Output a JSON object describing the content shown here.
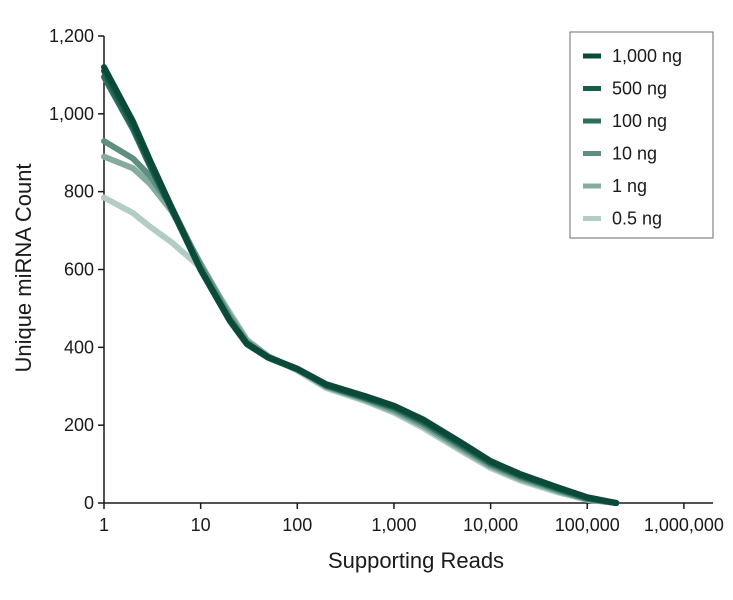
{
  "chart_data": {
    "type": "line",
    "xlabel": "Supporting Reads",
    "ylabel": "Unique miRNA Count",
    "x_scale": "log",
    "xlim": [
      1,
      2000000
    ],
    "ylim": [
      0,
      1200
    ],
    "x_ticks": [
      1,
      10,
      100,
      1000,
      10000,
      100000,
      1000000
    ],
    "x_tick_labels": [
      "1",
      "10",
      "100",
      "1,000",
      "10,000",
      "100,000",
      "1,000,000"
    ],
    "y_ticks": [
      0,
      200,
      400,
      600,
      800,
      1000,
      1200
    ],
    "y_tick_labels": [
      "0",
      "200",
      "400",
      "600",
      "800",
      "1,000",
      "1,200"
    ],
    "grid": false,
    "legend_position": "top-right",
    "series": [
      {
        "name": "1,000 ng",
        "color": "#0b4a3a",
        "x": [
          1,
          2,
          3,
          5,
          10,
          20,
          30,
          50,
          100,
          200,
          500,
          1000,
          2000,
          5000,
          10000,
          20000,
          50000,
          100000,
          200000
        ],
        "y": [
          1120,
          980,
          880,
          760,
          600,
          470,
          410,
          375,
          345,
          305,
          275,
          250,
          215,
          155,
          108,
          75,
          40,
          15,
          0
        ]
      },
      {
        "name": "500 ng",
        "color": "#155e4a",
        "x": [
          1,
          2,
          3,
          5,
          10,
          20,
          30,
          50,
          100,
          200,
          500,
          1000,
          2000,
          5000,
          10000,
          20000,
          50000,
          100000,
          200000
        ],
        "y": [
          1110,
          970,
          870,
          755,
          598,
          468,
          408,
          373,
          343,
          303,
          272,
          248,
          212,
          152,
          105,
          72,
          38,
          13,
          0
        ]
      },
      {
        "name": "100 ng",
        "color": "#2f6e5c",
        "x": [
          1,
          2,
          3,
          5,
          10,
          20,
          30,
          50,
          100,
          200,
          500,
          1000,
          2000,
          5000,
          10000,
          20000,
          50000,
          100000,
          200000
        ],
        "y": [
          1095,
          960,
          865,
          755,
          600,
          470,
          410,
          374,
          344,
          302,
          270,
          245,
          208,
          148,
          102,
          70,
          36,
          12,
          0
        ]
      },
      {
        "name": "10 ng",
        "color": "#5e8f80",
        "x": [
          1,
          2,
          3,
          5,
          10,
          20,
          30,
          50,
          100,
          200,
          500,
          1000,
          2000,
          5000,
          10000,
          20000,
          50000,
          100000,
          200000
        ],
        "y": [
          930,
          885,
          840,
          760,
          610,
          478,
          413,
          375,
          345,
          300,
          268,
          240,
          203,
          143,
          98,
          66,
          33,
          10,
          0
        ]
      },
      {
        "name": "1 ng",
        "color": "#86aca0",
        "x": [
          1,
          2,
          3,
          5,
          10,
          20,
          30,
          50,
          100,
          200,
          500,
          1000,
          2000,
          5000,
          10000,
          20000,
          50000,
          100000,
          200000
        ],
        "y": [
          890,
          860,
          820,
          750,
          615,
          485,
          418,
          377,
          343,
          298,
          265,
          236,
          198,
          138,
          94,
          62,
          30,
          9,
          0
        ]
      },
      {
        "name": "0.5 ng",
        "color": "#b4cdc4",
        "x": [
          1,
          2,
          3,
          5,
          10,
          20,
          30,
          50,
          100,
          200,
          500,
          1000,
          2000,
          5000,
          10000,
          20000,
          50000,
          100000,
          200000
        ],
        "y": [
          785,
          745,
          710,
          670,
          605,
          490,
          420,
          378,
          340,
          295,
          262,
          232,
          193,
          133,
          90,
          58,
          27,
          8,
          0
        ]
      }
    ]
  }
}
